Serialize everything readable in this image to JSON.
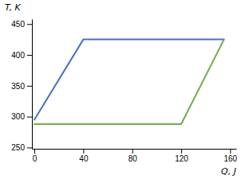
{
  "chart_data": {
    "type": "line",
    "xlabel": "Q, J",
    "ylabel": "T, K",
    "series": [
      {
        "color": "#4472C4",
        "x": [
          0,
          40,
          155
        ],
        "values": [
          295,
          425,
          425
        ]
      },
      {
        "color": "#70AD47",
        "x": [
          0,
          120,
          155
        ],
        "values": [
          288,
          288,
          425
        ]
      }
    ],
    "xlim": [
      -2,
      165
    ],
    "ylim": [
      248,
      458
    ],
    "xticks": [
      0,
      40,
      80,
      120,
      160
    ],
    "yticks": [
      250,
      300,
      350,
      400,
      450
    ]
  }
}
